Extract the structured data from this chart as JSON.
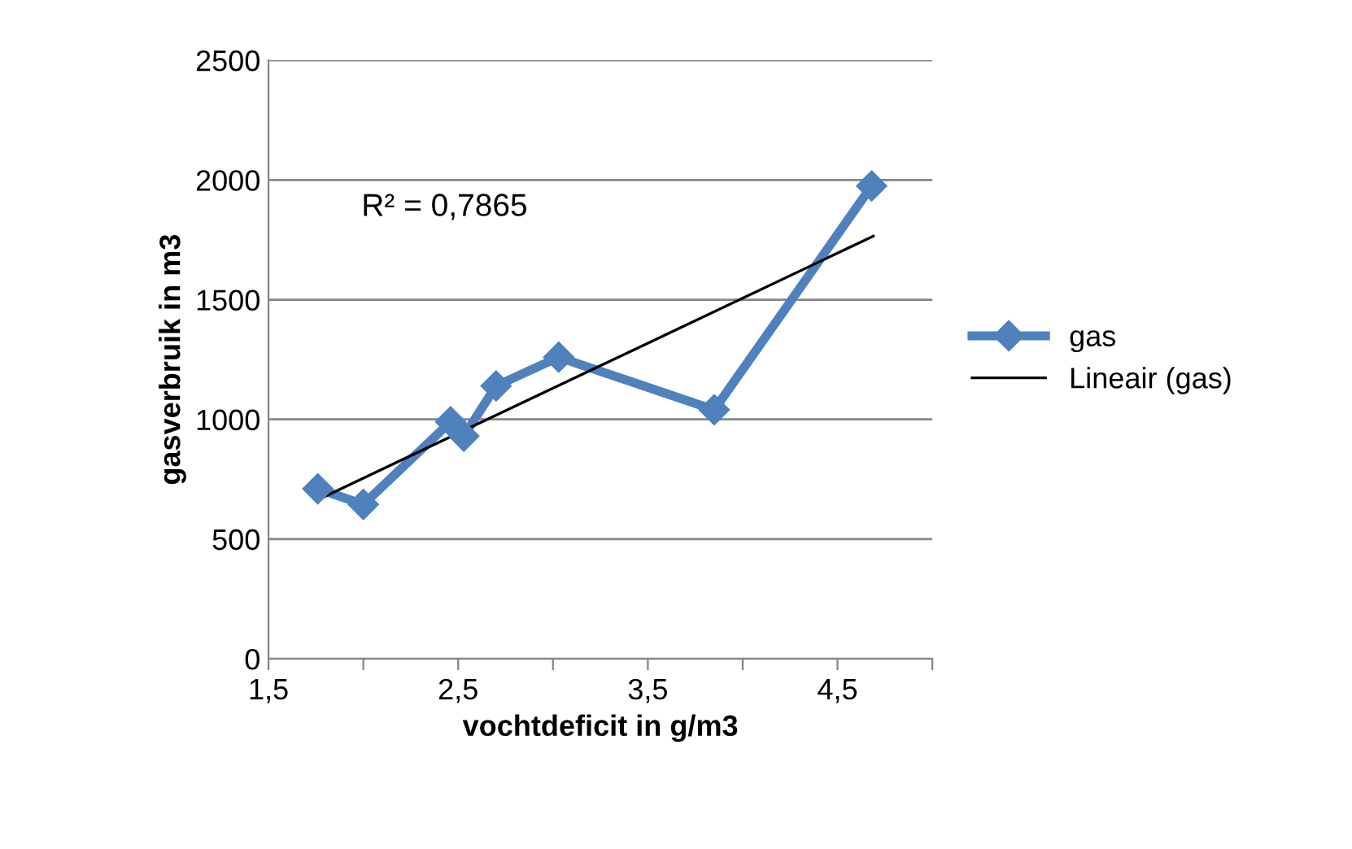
{
  "chart_data": {
    "type": "line",
    "xlabel": "vochtdeficit in g/m3",
    "ylabel": "gasverbruik in m3",
    "series": [
      {
        "name": "gas",
        "color": "#4f81bd",
        "marker": "diamond",
        "x": [
          1.76,
          2.0,
          2.46,
          2.53,
          2.7,
          3.03,
          3.85,
          4.68
        ],
        "values": [
          710,
          645,
          990,
          930,
          1140,
          1260,
          1040,
          1975
        ]
      },
      {
        "name": "Lineair (gas)",
        "color": "#000000",
        "marker": "none",
        "x": [
          1.77,
          4.69
        ],
        "values": [
          668,
          1766
        ]
      }
    ],
    "xlim": [
      1.5,
      5
    ],
    "xticks": [
      {
        "value": 1.5,
        "label": "1,5"
      },
      {
        "value": 2,
        "label": null
      },
      {
        "value": 2.5,
        "label": "2,5"
      },
      {
        "value": 3,
        "label": null
      },
      {
        "value": 3.5,
        "label": "3,5"
      },
      {
        "value": 4,
        "label": null
      },
      {
        "value": 4.5,
        "label": "4,5"
      },
      {
        "value": 5,
        "label": null
      }
    ],
    "ylim": [
      0,
      2500
    ],
    "yticks": [
      0,
      500,
      1000,
      1500,
      2000,
      2500
    ],
    "grid": "y",
    "legend": "right",
    "annotations": [
      "R² = 0,7865"
    ]
  }
}
